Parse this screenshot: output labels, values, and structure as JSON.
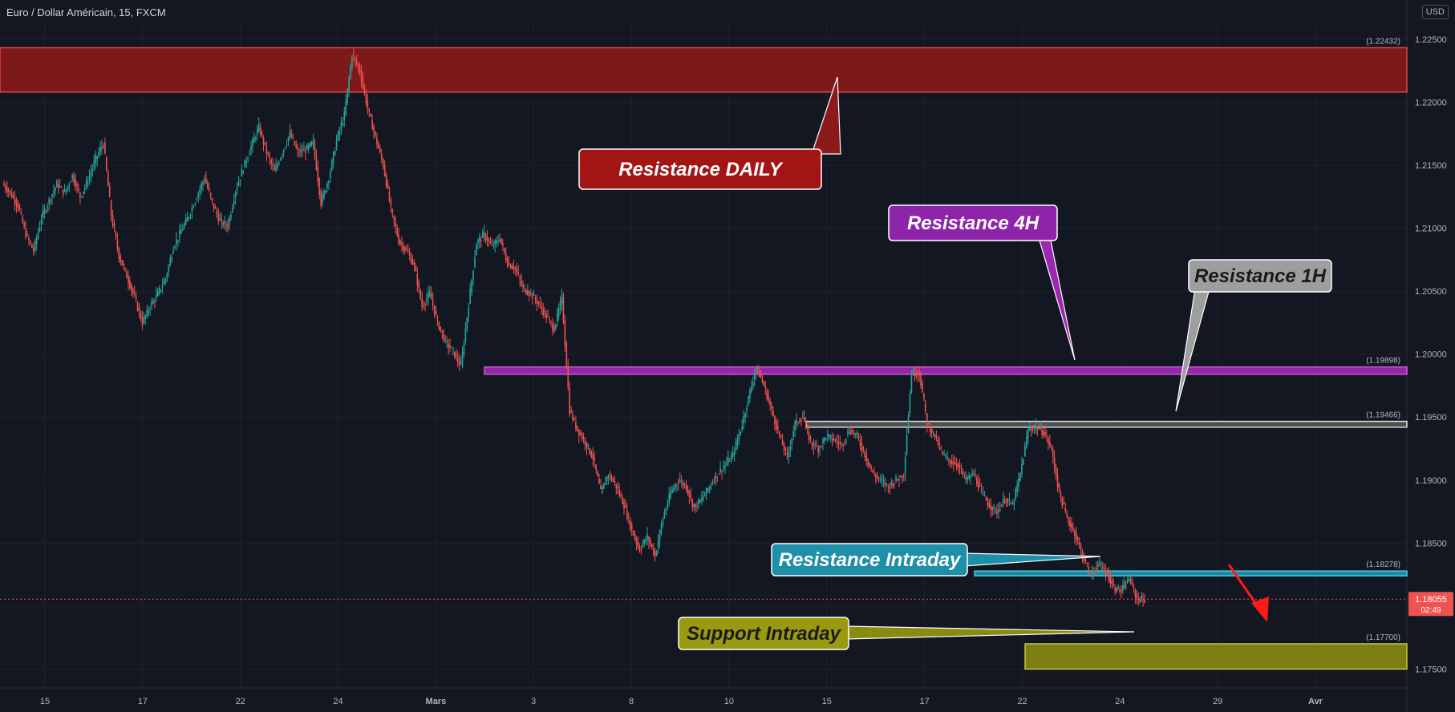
{
  "window": {
    "title": "Euro / Dollar Américain, 15, FXCM",
    "currency": "USD"
  },
  "colors": {
    "background": "#131722",
    "up": "#26a69a",
    "down": "#ef5350",
    "grid": "#1e222d",
    "axis_text": "#b2b5be",
    "daily": "#8b1a1a",
    "h4": "#9c27b0",
    "h1": "#9e9e9e",
    "intraday_res": "#1e8fa8",
    "intraday_sup": "#8a8a10"
  },
  "chart_data": {
    "type": "line",
    "title": "Euro / Dollar Américain, 15, FXCM",
    "ylim": [
      1.1735,
      1.2262
    ],
    "x_ticks": [
      "15",
      "17",
      "22",
      "24",
      "Mars",
      "3",
      "8",
      "10",
      "15",
      "17",
      "22",
      "24",
      "29",
      "Avr"
    ],
    "y_ticks": [
      "1.22500",
      "1.22000",
      "1.21500",
      "1.21000",
      "1.20500",
      "1.20000",
      "1.19500",
      "1.19000",
      "1.18500",
      "1.18000",
      "1.17500"
    ],
    "series": [
      {
        "values": [
          1.2135,
          1.2128,
          1.2118,
          1.2095,
          1.2082,
          1.2108,
          1.2122,
          1.2135,
          1.2128,
          1.2142,
          1.2125,
          1.2138,
          1.2155,
          1.2168,
          1.211,
          1.2078,
          1.2062,
          1.2045,
          1.2025,
          1.2038,
          1.2048,
          1.206,
          1.2085,
          1.2098,
          1.211,
          1.2125,
          1.214,
          1.212,
          1.2105,
          1.2102,
          1.213,
          1.2148,
          1.2165,
          1.218,
          1.216,
          1.2145,
          1.216,
          1.2175,
          1.216,
          1.2162,
          1.2168,
          1.212,
          1.214,
          1.217,
          1.219,
          1.2238,
          1.2225,
          1.2195,
          1.2172,
          1.215,
          1.2115,
          1.209,
          1.2082,
          1.207,
          1.2038,
          1.2048,
          1.2025,
          1.201,
          1.2002,
          1.199,
          1.204,
          1.2088,
          1.2095,
          1.2085,
          1.2092,
          1.2072,
          1.2068,
          1.2052,
          1.2048,
          1.204,
          1.203,
          1.202,
          1.2045,
          1.1955,
          1.194,
          1.193,
          1.1918,
          1.189,
          1.1905,
          1.1895,
          1.188,
          1.186,
          1.1845,
          1.1855,
          1.184,
          1.187,
          1.189,
          1.19,
          1.1895,
          1.1878,
          1.1885,
          1.1895,
          1.1905,
          1.1912,
          1.192,
          1.194,
          1.1965,
          1.199,
          1.1975,
          1.1955,
          1.1935,
          1.1918,
          1.1945,
          1.195,
          1.193,
          1.1925,
          1.1935,
          1.1932,
          1.1928,
          1.194,
          1.1935,
          1.192,
          1.1905,
          1.19,
          1.1895,
          1.19,
          1.1905,
          1.1985,
          1.1985,
          1.1945,
          1.1935,
          1.192,
          1.1915,
          1.1912,
          1.19,
          1.1905,
          1.189,
          1.188,
          1.1875,
          1.1885,
          1.188,
          1.1905,
          1.194,
          1.1942,
          1.1938,
          1.1925,
          1.189,
          1.187,
          1.1858,
          1.184,
          1.1825,
          1.1833,
          1.1828,
          1.1815,
          1.1812,
          1.1822,
          1.1806,
          1.1805
        ]
      }
    ]
  },
  "levels": [
    {
      "price_label": "(1.22432)",
      "annotation": "Resistance DAILY"
    },
    {
      "price_label": "(1.19898)",
      "annotation": "Resistance 4H"
    },
    {
      "price_label": "(1.19466)",
      "annotation": "Resistance 1H"
    },
    {
      "price_label": "(1.18278)",
      "annotation": "Resistance Intraday"
    },
    {
      "price_label": "(1.17700)",
      "annotation": "Support Intraday"
    }
  ],
  "current_price": {
    "price": "1.18055",
    "countdown": "02:49"
  }
}
